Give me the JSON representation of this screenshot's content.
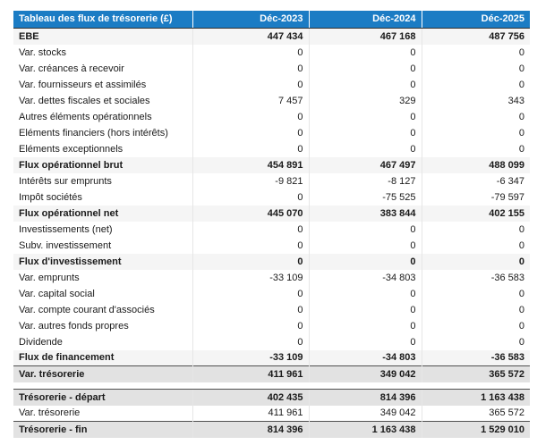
{
  "table": {
    "title": "Tableau des flux de trésorerie (£)",
    "columns": [
      "Déc-2023",
      "Déc-2024",
      "Déc-2025"
    ],
    "colors": {
      "header_bg": "#1b7cc4",
      "header_text": "#ffffff",
      "subtotal_row_bg": "#f5f5f5",
      "total_row_bg": "#e2e2e2",
      "total_row_border": "#4f4f4f"
    },
    "sections": [
      {
        "rows": [
          {
            "label": "EBE",
            "values": [
              "447 434",
              "467 168",
              "487 756"
            ],
            "style": "subtotal"
          },
          {
            "label": "Var. stocks",
            "values": [
              "0",
              "0",
              "0"
            ],
            "style": "normal"
          },
          {
            "label": "Var. créances à recevoir",
            "values": [
              "0",
              "0",
              "0"
            ],
            "style": "normal"
          },
          {
            "label": "Var. fournisseurs et assimilés",
            "values": [
              "0",
              "0",
              "0"
            ],
            "style": "normal"
          },
          {
            "label": "Var. dettes fiscales et sociales",
            "values": [
              "7 457",
              "329",
              "343"
            ],
            "style": "normal"
          },
          {
            "label": "Autres éléments opérationnels",
            "values": [
              "0",
              "0",
              "0"
            ],
            "style": "normal"
          },
          {
            "label": "Eléments financiers (hors intérêts)",
            "values": [
              "0",
              "0",
              "0"
            ],
            "style": "normal"
          },
          {
            "label": "Eléments exceptionnels",
            "values": [
              "0",
              "0",
              "0"
            ],
            "style": "normal"
          },
          {
            "label": "Flux opérationnel brut",
            "values": [
              "454 891",
              "467 497",
              "488 099"
            ],
            "style": "subtotal"
          },
          {
            "label": "Intérêts sur emprunts",
            "values": [
              "-9 821",
              "-8 127",
              "-6 347"
            ],
            "style": "normal"
          },
          {
            "label": "Impôt sociétés",
            "values": [
              "0",
              "-75 525",
              "-79 597"
            ],
            "style": "normal"
          },
          {
            "label": "Flux opérationnel net",
            "values": [
              "445 070",
              "383 844",
              "402 155"
            ],
            "style": "subtotal"
          },
          {
            "label": "Investissements (net)",
            "values": [
              "0",
              "0",
              "0"
            ],
            "style": "normal"
          },
          {
            "label": "Subv. investissement",
            "values": [
              "0",
              "0",
              "0"
            ],
            "style": "normal"
          },
          {
            "label": "Flux d'investissement",
            "values": [
              "0",
              "0",
              "0"
            ],
            "style": "subtotal"
          },
          {
            "label": "Var. emprunts",
            "values": [
              "-33 109",
              "-34 803",
              "-36 583"
            ],
            "style": "normal"
          },
          {
            "label": "Var. capital social",
            "values": [
              "0",
              "0",
              "0"
            ],
            "style": "normal"
          },
          {
            "label": "Var. compte courant d'associés",
            "values": [
              "0",
              "0",
              "0"
            ],
            "style": "normal"
          },
          {
            "label": "Var. autres fonds propres",
            "values": [
              "0",
              "0",
              "0"
            ],
            "style": "normal"
          },
          {
            "label": "Dividende",
            "values": [
              "0",
              "0",
              "0"
            ],
            "style": "normal"
          },
          {
            "label": "Flux de financement",
            "values": [
              "-33 109",
              "-34 803",
              "-36 583"
            ],
            "style": "subtotal"
          },
          {
            "label": "Var. trésorerie",
            "values": [
              "411 961",
              "349 042",
              "365 572"
            ],
            "style": "total"
          }
        ]
      },
      {
        "rows": [
          {
            "label": "Trésorerie - départ",
            "values": [
              "402 435",
              "814 396",
              "1 163 438"
            ],
            "style": "total"
          },
          {
            "label": "Var. trésorerie",
            "values": [
              "411 961",
              "349 042",
              "365 572"
            ],
            "style": "normal"
          },
          {
            "label": "Trésorerie - fin",
            "values": [
              "814 396",
              "1 163 438",
              "1 529 010"
            ],
            "style": "total"
          }
        ]
      }
    ]
  }
}
